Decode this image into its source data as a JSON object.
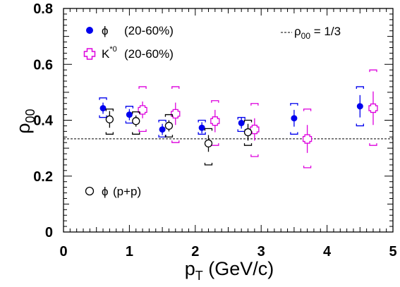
{
  "chart_data": {
    "type": "scatter",
    "xlabel": "p",
    "xlabel_sub": "T",
    "xlabel_unit": " (GeV/c)",
    "ylabel": "ρ",
    "ylabel_sub": "00",
    "xlim": [
      0,
      5
    ],
    "ylim": [
      0,
      0.8
    ],
    "x_ticks": [
      "0",
      "1",
      "2",
      "3",
      "4",
      "5"
    ],
    "y_ticks": [
      "0",
      "0.2",
      "0.4",
      "0.6",
      "0.8"
    ],
    "grid": false,
    "reference_line": {
      "y": 0.3333,
      "label_rho": "ρ",
      "label_sub": "00",
      "label_rest": " = 1/3"
    },
    "legend": [
      {
        "symbol": "ϕ",
        "suffix": "",
        "text": "(20-60%)"
      },
      {
        "symbol": "K",
        "suffix": "*0",
        "text": "(20-60%)"
      },
      {
        "symbol": "ϕ",
        "suffix": "",
        "text": "(p+p)"
      }
    ],
    "series": [
      {
        "key": "phi_auau",
        "color": "#0000ee",
        "marker": "filled-circle",
        "points": [
          {
            "x": 0.6,
            "y": 0.443,
            "stat": 0.02,
            "sys_lo": 0.41,
            "sys_hi": 0.48
          },
          {
            "x": 1.0,
            "y": 0.42,
            "stat": 0.02,
            "sys_lo": 0.39,
            "sys_hi": 0.45
          },
          {
            "x": 1.5,
            "y": 0.367,
            "stat": 0.02,
            "sys_lo": 0.34,
            "sys_hi": 0.4
          },
          {
            "x": 2.1,
            "y": 0.373,
            "stat": 0.02,
            "sys_lo": 0.35,
            "sys_hi": 0.4
          },
          {
            "x": 2.7,
            "y": 0.39,
            "stat": 0.02,
            "sys_lo": 0.36,
            "sys_hi": 0.41
          },
          {
            "x": 3.5,
            "y": 0.407,
            "stat": 0.03,
            "sys_lo": 0.35,
            "sys_hi": 0.46
          },
          {
            "x": 4.5,
            "y": 0.45,
            "stat": 0.04,
            "sys_lo": 0.38,
            "sys_hi": 0.52
          }
        ]
      },
      {
        "key": "kstar_auau",
        "color": "#dd00dd",
        "marker": "open-cross",
        "points": [
          {
            "x": 1.2,
            "y": 0.437,
            "stat": 0.03,
            "sys_lo": 0.36,
            "sys_hi": 0.52
          },
          {
            "x": 1.7,
            "y": 0.423,
            "stat": 0.04,
            "sys_lo": 0.32,
            "sys_hi": 0.52
          },
          {
            "x": 2.3,
            "y": 0.397,
            "stat": 0.04,
            "sys_lo": 0.31,
            "sys_hi": 0.47
          },
          {
            "x": 2.9,
            "y": 0.367,
            "stat": 0.04,
            "sys_lo": 0.27,
            "sys_hi": 0.46
          },
          {
            "x": 3.7,
            "y": 0.333,
            "stat": 0.05,
            "sys_lo": 0.23,
            "sys_hi": 0.44
          },
          {
            "x": 4.7,
            "y": 0.443,
            "stat": 0.06,
            "sys_lo": 0.31,
            "sys_hi": 0.58
          }
        ]
      },
      {
        "key": "phi_pp",
        "color": "#000000",
        "marker": "open-circle",
        "points": [
          {
            "x": 0.7,
            "y": 0.403,
            "stat": 0.03,
            "sys_lo": 0.35,
            "sys_hi": 0.44
          },
          {
            "x": 1.1,
            "y": 0.397,
            "stat": 0.02,
            "sys_lo": 0.35,
            "sys_hi": 0.43
          },
          {
            "x": 1.6,
            "y": 0.38,
            "stat": 0.02,
            "sys_lo": 0.34,
            "sys_hi": 0.42
          },
          {
            "x": 2.2,
            "y": 0.317,
            "stat": 0.03,
            "sys_lo": 0.24,
            "sys_hi": 0.37
          },
          {
            "x": 2.8,
            "y": 0.357,
            "stat": 0.03,
            "sys_lo": 0.31,
            "sys_hi": 0.4
          }
        ]
      }
    ]
  }
}
